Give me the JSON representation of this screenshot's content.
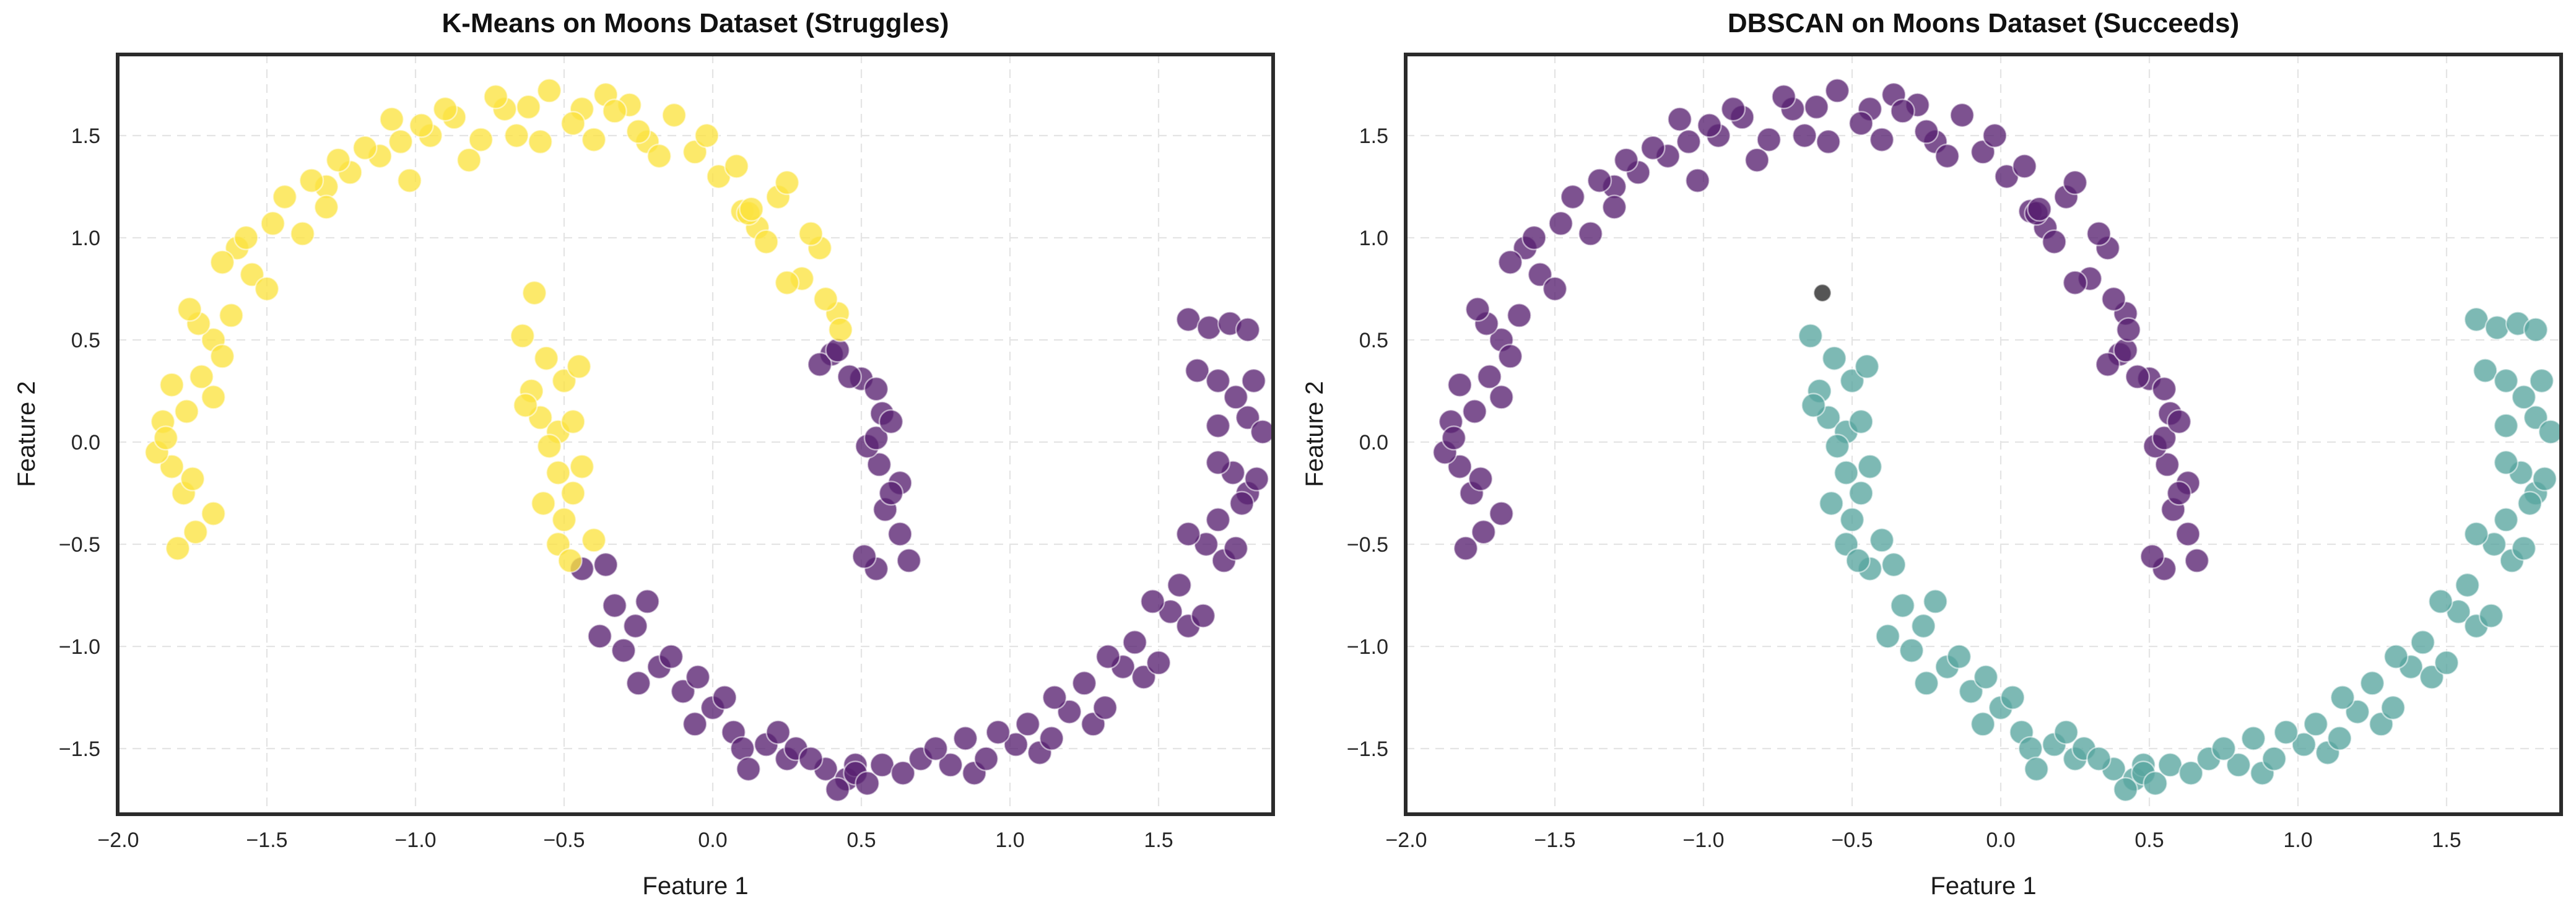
{
  "chart_data": {
    "type": "scatter",
    "description": "Two side-by-side scatter plots of the same two-moons dataset, colored by K-Means vs DBSCAN cluster assignments",
    "xlabel": "Feature 1",
    "ylabel": "Feature 2",
    "xlim": [
      -2.0,
      1.89
    ],
    "ylim": [
      -1.82,
      1.9
    ],
    "xticks": [
      -2.0,
      -1.5,
      -1.0,
      -0.5,
      0.0,
      0.5,
      1.0,
      1.5
    ],
    "yticks": [
      -1.5,
      -1.0,
      -0.5,
      0.0,
      0.5,
      1.0,
      1.5
    ],
    "grid": "dashed",
    "legend": "none",
    "marker": {
      "radius_px": 19,
      "noise_radius_px": 14,
      "opacity": 0.78,
      "edge_color": "#ffffff"
    },
    "style": {
      "background": "#ffffff",
      "grid_color": "#e4e4e4",
      "spine_color": "#2b2b2b",
      "kmeans_yellow": "#FBE340",
      "cluster_purple": "#582171",
      "dbscan_teal": "#58A59F",
      "noise_gray": "#434343"
    },
    "charts": [
      {
        "title": "K-Means on Moons Dataset (Struggles)",
        "label_key": "kmeans",
        "palette": {
          "0": "#FBE340",
          "1": "#582171"
        }
      },
      {
        "title": "DBSCAN on Moons Dataset (Succeeds)",
        "label_key": "dbscan",
        "palette": {
          "0": "#582171",
          "1": "#58A59F",
          "2": "#434343"
        }
      }
    ],
    "points_format": [
      "x",
      "y",
      "kmeans_label",
      "dbscan_label"
    ],
    "points": [
      [
        0.55,
        -0.62,
        1,
        0
      ],
      [
        0.63,
        -0.45,
        1,
        0
      ],
      [
        0.58,
        -0.33,
        1,
        0
      ],
      [
        0.51,
        -0.56,
        1,
        0
      ],
      [
        0.66,
        -0.58,
        1,
        0
      ],
      [
        0.56,
        -0.11,
        1,
        0
      ],
      [
        0.63,
        -0.2,
        1,
        0
      ],
      [
        0.52,
        -0.02,
        1,
        0
      ],
      [
        0.6,
        -0.25,
        1,
        0
      ],
      [
        0.55,
        0.02,
        1,
        0
      ],
      [
        0.5,
        0.31,
        1,
        0
      ],
      [
        0.57,
        0.14,
        1,
        0
      ],
      [
        0.46,
        0.32,
        1,
        0
      ],
      [
        0.55,
        0.26,
        1,
        0
      ],
      [
        0.6,
        0.1,
        1,
        0
      ],
      [
        0.4,
        0.43,
        1,
        0
      ],
      [
        0.42,
        0.63,
        0,
        0
      ],
      [
        0.36,
        0.38,
        1,
        0
      ],
      [
        0.42,
        0.45,
        1,
        0
      ],
      [
        0.43,
        0.55,
        0,
        0
      ],
      [
        0.3,
        0.8,
        0,
        0
      ],
      [
        0.36,
        0.95,
        0,
        0
      ],
      [
        0.25,
        0.78,
        0,
        0
      ],
      [
        0.33,
        1.02,
        0,
        0
      ],
      [
        0.38,
        0.7,
        0,
        0
      ],
      [
        0.15,
        1.05,
        0,
        0
      ],
      [
        0.22,
        1.2,
        0,
        0
      ],
      [
        0.1,
        1.13,
        0,
        0
      ],
      [
        0.25,
        1.27,
        0,
        0
      ],
      [
        0.18,
        0.98,
        0,
        0
      ],
      [
        0.02,
        1.3,
        0,
        0
      ],
      [
        -0.06,
        1.42,
        0,
        0
      ],
      [
        0.08,
        1.35,
        0,
        0
      ],
      [
        -0.02,
        1.5,
        0,
        0
      ],
      [
        0.12,
        1.12,
        0,
        0
      ],
      [
        0.13,
        1.14,
        0,
        0
      ],
      [
        -0.22,
        1.47,
        0,
        0
      ],
      [
        -0.13,
        1.6,
        0,
        0
      ],
      [
        -0.25,
        1.52,
        0,
        0
      ],
      [
        -0.18,
        1.4,
        0,
        0
      ],
      [
        -0.28,
        1.65,
        0,
        0
      ],
      [
        -0.44,
        1.63,
        0,
        0
      ],
      [
        -0.36,
        1.7,
        0,
        0
      ],
      [
        -0.47,
        1.56,
        0,
        0
      ],
      [
        -0.4,
        1.48,
        0,
        0
      ],
      [
        -0.33,
        1.62,
        0,
        0
      ],
      [
        -0.62,
        1.64,
        0,
        0
      ],
      [
        -0.7,
        1.63,
        0,
        0
      ],
      [
        -0.55,
        1.72,
        0,
        0
      ],
      [
        -0.66,
        1.5,
        0,
        0
      ],
      [
        -0.58,
        1.47,
        0,
        0
      ],
      [
        -0.73,
        1.69,
        0,
        0
      ],
      [
        -0.87,
        1.59,
        0,
        0
      ],
      [
        -0.78,
        1.48,
        0,
        0
      ],
      [
        -0.9,
        1.63,
        0,
        0
      ],
      [
        -0.82,
        1.38,
        0,
        0
      ],
      [
        -0.95,
        1.5,
        0,
        0
      ],
      [
        -1.05,
        1.47,
        0,
        0
      ],
      [
        -0.98,
        1.55,
        0,
        0
      ],
      [
        -1.12,
        1.4,
        0,
        0
      ],
      [
        -1.02,
        1.28,
        0,
        0
      ],
      [
        -1.08,
        1.58,
        0,
        0
      ],
      [
        -1.22,
        1.32,
        0,
        0
      ],
      [
        -1.3,
        1.25,
        0,
        0
      ],
      [
        -1.17,
        1.44,
        0,
        0
      ],
      [
        -1.26,
        1.38,
        0,
        0
      ],
      [
        -1.44,
        1.2,
        0,
        0
      ],
      [
        -1.38,
        1.02,
        0,
        0
      ],
      [
        -1.3,
        1.15,
        0,
        0
      ],
      [
        -1.48,
        1.07,
        0,
        0
      ],
      [
        -1.35,
        1.28,
        0,
        0
      ],
      [
        -1.55,
        0.82,
        0,
        0
      ],
      [
        -1.6,
        0.95,
        0,
        0
      ],
      [
        -1.5,
        0.75,
        0,
        0
      ],
      [
        -1.65,
        0.88,
        0,
        0
      ],
      [
        -1.57,
        1.0,
        0,
        0
      ],
      [
        -1.68,
        0.5,
        0,
        0
      ],
      [
        -1.62,
        0.62,
        0,
        0
      ],
      [
        -1.73,
        0.58,
        0,
        0
      ],
      [
        -1.65,
        0.42,
        0,
        0
      ],
      [
        -1.76,
        0.65,
        0,
        0
      ],
      [
        -1.77,
        0.15,
        0,
        0
      ],
      [
        -1.82,
        0.28,
        0,
        0
      ],
      [
        -1.72,
        0.32,
        0,
        0
      ],
      [
        -1.85,
        0.1,
        0,
        0
      ],
      [
        -1.68,
        0.22,
        0,
        0
      ],
      [
        -1.82,
        -0.12,
        0,
        0
      ],
      [
        -1.87,
        -0.05,
        0,
        0
      ],
      [
        -1.78,
        -0.25,
        0,
        0
      ],
      [
        -1.84,
        0.02,
        0,
        0
      ],
      [
        -1.75,
        -0.18,
        0,
        0
      ],
      [
        -1.8,
        -0.52,
        0,
        0
      ],
      [
        -1.74,
        -0.44,
        0,
        0
      ],
      [
        -1.68,
        -0.35,
        0,
        0
      ],
      [
        -0.64,
        0.52,
        0,
        1
      ],
      [
        -0.56,
        0.41,
        0,
        1
      ],
      [
        -0.5,
        0.3,
        0,
        1
      ],
      [
        -0.61,
        0.25,
        0,
        1
      ],
      [
        -0.45,
        0.37,
        0,
        1
      ],
      [
        -0.58,
        0.12,
        0,
        1
      ],
      [
        -0.52,
        0.05,
        0,
        1
      ],
      [
        -0.63,
        0.18,
        0,
        1
      ],
      [
        -0.47,
        0.1,
        0,
        1
      ],
      [
        -0.55,
        -0.02,
        0,
        1
      ],
      [
        -0.52,
        -0.15,
        0,
        1
      ],
      [
        -0.47,
        -0.25,
        0,
        1
      ],
      [
        -0.57,
        -0.3,
        0,
        1
      ],
      [
        -0.44,
        -0.12,
        0,
        1
      ],
      [
        -0.5,
        -0.38,
        0,
        1
      ],
      [
        -0.52,
        -0.5,
        0,
        1
      ],
      [
        -0.44,
        -0.62,
        1,
        1
      ],
      [
        -0.4,
        -0.48,
        0,
        1
      ],
      [
        -0.48,
        -0.58,
        0,
        1
      ],
      [
        -0.36,
        -0.6,
        1,
        1
      ],
      [
        -0.33,
        -0.8,
        1,
        1
      ],
      [
        -0.26,
        -0.9,
        1,
        1
      ],
      [
        -0.38,
        -0.95,
        1,
        1
      ],
      [
        -0.3,
        -1.02,
        1,
        1
      ],
      [
        -0.22,
        -0.78,
        1,
        1
      ],
      [
        -0.18,
        -1.1,
        1,
        1
      ],
      [
        -0.1,
        -1.22,
        1,
        1
      ],
      [
        -0.25,
        -1.18,
        1,
        1
      ],
      [
        -0.14,
        -1.05,
        1,
        1
      ],
      [
        -0.05,
        -1.15,
        1,
        1
      ],
      [
        0.0,
        -1.3,
        1,
        1
      ],
      [
        0.07,
        -1.42,
        1,
        1
      ],
      [
        -0.06,
        -1.38,
        1,
        1
      ],
      [
        0.04,
        -1.25,
        1,
        1
      ],
      [
        0.1,
        -1.5,
        1,
        1
      ],
      [
        0.18,
        -1.48,
        1,
        1
      ],
      [
        0.25,
        -1.55,
        1,
        1
      ],
      [
        0.12,
        -1.6,
        1,
        1
      ],
      [
        0.22,
        -1.42,
        1,
        1
      ],
      [
        0.28,
        -1.5,
        1,
        1
      ],
      [
        0.38,
        -1.6,
        1,
        1
      ],
      [
        0.45,
        -1.65,
        1,
        1
      ],
      [
        0.33,
        -1.55,
        1,
        1
      ],
      [
        0.42,
        -1.7,
        1,
        1
      ],
      [
        0.48,
        -1.58,
        1,
        1
      ],
      [
        0.48,
        -1.62,
        1,
        1
      ],
      [
        0.52,
        -1.67,
        1,
        1
      ],
      [
        0.57,
        -1.58,
        1,
        1
      ],
      [
        0.64,
        -1.62,
        1,
        1
      ],
      [
        0.7,
        -1.55,
        1,
        1
      ],
      [
        0.8,
        -1.58,
        1,
        1
      ],
      [
        0.88,
        -1.62,
        1,
        1
      ],
      [
        0.75,
        -1.5,
        1,
        1
      ],
      [
        0.85,
        -1.45,
        1,
        1
      ],
      [
        0.92,
        -1.55,
        1,
        1
      ],
      [
        1.02,
        -1.48,
        1,
        1
      ],
      [
        1.1,
        -1.52,
        1,
        1
      ],
      [
        0.96,
        -1.42,
        1,
        1
      ],
      [
        1.06,
        -1.38,
        1,
        1
      ],
      [
        1.14,
        -1.45,
        1,
        1
      ],
      [
        1.2,
        -1.32,
        1,
        1
      ],
      [
        1.28,
        -1.38,
        1,
        1
      ],
      [
        1.15,
        -1.25,
        1,
        1
      ],
      [
        1.25,
        -1.18,
        1,
        1
      ],
      [
        1.32,
        -1.3,
        1,
        1
      ],
      [
        1.38,
        -1.1,
        1,
        1
      ],
      [
        1.45,
        -1.15,
        1,
        1
      ],
      [
        1.33,
        -1.05,
        1,
        1
      ],
      [
        1.42,
        -0.98,
        1,
        1
      ],
      [
        1.5,
        -1.08,
        1,
        1
      ],
      [
        1.54,
        -0.83,
        1,
        1
      ],
      [
        1.6,
        -0.9,
        1,
        1
      ],
      [
        1.48,
        -0.78,
        1,
        1
      ],
      [
        1.57,
        -0.7,
        1,
        1
      ],
      [
        1.65,
        -0.85,
        1,
        1
      ],
      [
        1.66,
        -0.5,
        1,
        1
      ],
      [
        1.72,
        -0.58,
        1,
        1
      ],
      [
        1.6,
        -0.45,
        1,
        1
      ],
      [
        1.7,
        -0.38,
        1,
        1
      ],
      [
        1.76,
        -0.52,
        1,
        1
      ],
      [
        1.75,
        -0.15,
        1,
        1
      ],
      [
        1.8,
        -0.25,
        1,
        1
      ],
      [
        1.7,
        -0.1,
        1,
        1
      ],
      [
        1.78,
        -0.3,
        1,
        1
      ],
      [
        1.83,
        -0.18,
        1,
        1
      ],
      [
        1.8,
        0.12,
        1,
        1
      ],
      [
        1.85,
        0.05,
        1,
        1
      ],
      [
        1.76,
        0.22,
        1,
        1
      ],
      [
        1.82,
        0.3,
        1,
        1
      ],
      [
        1.7,
        0.08,
        1,
        1
      ],
      [
        1.6,
        0.6,
        1,
        1
      ],
      [
        1.67,
        0.56,
        1,
        1
      ],
      [
        1.74,
        0.58,
        1,
        1
      ],
      [
        1.8,
        0.55,
        1,
        1
      ],
      [
        1.63,
        0.35,
        1,
        1
      ],
      [
        1.7,
        0.3,
        1,
        1
      ],
      [
        -0.6,
        0.73,
        0,
        2
      ]
    ]
  }
}
